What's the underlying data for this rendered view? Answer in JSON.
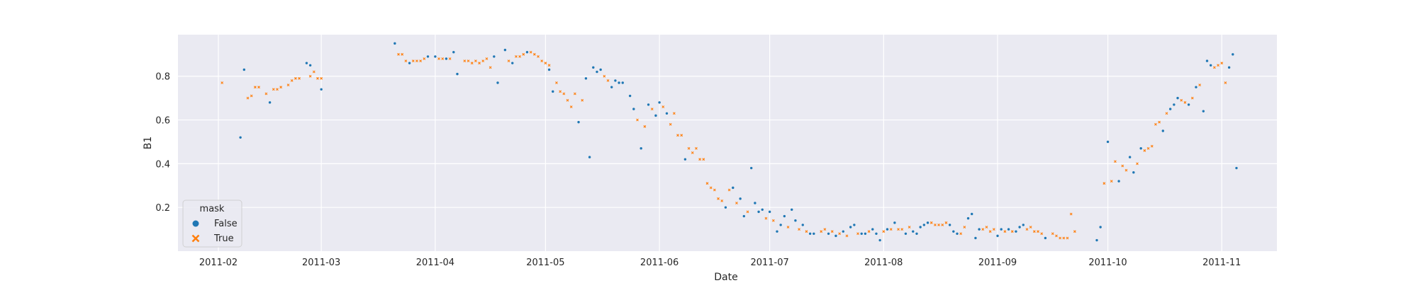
{
  "chart_data": {
    "type": "scatter",
    "title": "",
    "xlabel": "Date",
    "ylabel": "B1",
    "x_axis": "date",
    "xlim": [
      "2011-01-21",
      "2011-11-16"
    ],
    "ylim": [
      0.0,
      0.99
    ],
    "xticks": [
      "2011-02-01",
      "2011-03-01",
      "2011-04-01",
      "2011-05-01",
      "2011-06-01",
      "2011-07-01",
      "2011-08-01",
      "2011-09-01",
      "2011-10-01",
      "2011-11-01"
    ],
    "xtick_labels": [
      "2011-02",
      "2011-03",
      "2011-04",
      "2011-05",
      "2011-06",
      "2011-07",
      "2011-08",
      "2011-09",
      "2011-10",
      "2011-11"
    ],
    "yticks": [
      0.2,
      0.4,
      0.6,
      0.8
    ],
    "ytick_labels": [
      "0.2",
      "0.4",
      "0.6",
      "0.8"
    ],
    "grid": true,
    "style": "seaborn-darkgrid",
    "legend": {
      "title": "mask",
      "placement": "lower-left",
      "entries": [
        {
          "label": "False",
          "marker": "circle",
          "color": "#1f77b4"
        },
        {
          "label": "True",
          "marker": "x",
          "color": "#ff7f0e"
        }
      ]
    },
    "series": [
      {
        "name": "False",
        "color": "#1f77b4",
        "marker": "circle",
        "points": [
          [
            "2011-02-07",
            0.52
          ],
          [
            "2011-02-08",
            0.83
          ],
          [
            "2011-02-15",
            0.68
          ],
          [
            "2011-02-25",
            0.86
          ],
          [
            "2011-02-26",
            0.85
          ],
          [
            "2011-03-01",
            0.74
          ],
          [
            "2011-03-21",
            0.95
          ],
          [
            "2011-03-25",
            0.86
          ],
          [
            "2011-03-30",
            0.89
          ],
          [
            "2011-04-01",
            0.89
          ],
          [
            "2011-04-04",
            0.88
          ],
          [
            "2011-04-06",
            0.91
          ],
          [
            "2011-04-07",
            0.81
          ],
          [
            "2011-04-17",
            0.89
          ],
          [
            "2011-04-18",
            0.77
          ],
          [
            "2011-04-20",
            0.92
          ],
          [
            "2011-04-22",
            0.86
          ],
          [
            "2011-04-26",
            0.91
          ],
          [
            "2011-05-02",
            0.83
          ],
          [
            "2011-05-03",
            0.73
          ],
          [
            "2011-05-10",
            0.59
          ],
          [
            "2011-05-12",
            0.79
          ],
          [
            "2011-05-13",
            0.43
          ],
          [
            "2011-05-14",
            0.84
          ],
          [
            "2011-05-15",
            0.82
          ],
          [
            "2011-05-16",
            0.83
          ],
          [
            "2011-05-19",
            0.75
          ],
          [
            "2011-05-20",
            0.78
          ],
          [
            "2011-05-21",
            0.77
          ],
          [
            "2011-05-22",
            0.77
          ],
          [
            "2011-05-24",
            0.71
          ],
          [
            "2011-05-25",
            0.65
          ],
          [
            "2011-05-27",
            0.47
          ],
          [
            "2011-05-29",
            0.67
          ],
          [
            "2011-05-31",
            0.62
          ],
          [
            "2011-06-01",
            0.68
          ],
          [
            "2011-06-03",
            0.63
          ],
          [
            "2011-06-08",
            0.42
          ],
          [
            "2011-06-19",
            0.2
          ],
          [
            "2011-06-21",
            0.29
          ],
          [
            "2011-06-23",
            0.24
          ],
          [
            "2011-06-24",
            0.16
          ],
          [
            "2011-06-26",
            0.38
          ],
          [
            "2011-06-27",
            0.22
          ],
          [
            "2011-06-28",
            0.18
          ],
          [
            "2011-06-29",
            0.19
          ],
          [
            "2011-07-01",
            0.18
          ],
          [
            "2011-07-03",
            0.09
          ],
          [
            "2011-07-04",
            0.12
          ],
          [
            "2011-07-05",
            0.16
          ],
          [
            "2011-07-07",
            0.19
          ],
          [
            "2011-07-08",
            0.14
          ],
          [
            "2011-07-10",
            0.12
          ],
          [
            "2011-07-12",
            0.08
          ],
          [
            "2011-07-13",
            0.08
          ],
          [
            "2011-07-17",
            0.08
          ],
          [
            "2011-07-19",
            0.07
          ],
          [
            "2011-07-21",
            0.09
          ],
          [
            "2011-07-23",
            0.11
          ],
          [
            "2011-07-24",
            0.12
          ],
          [
            "2011-07-26",
            0.08
          ],
          [
            "2011-07-27",
            0.08
          ],
          [
            "2011-07-29",
            0.1
          ],
          [
            "2011-07-30",
            0.08
          ],
          [
            "2011-07-31",
            0.05
          ],
          [
            "2011-08-02",
            0.1
          ],
          [
            "2011-08-04",
            0.13
          ],
          [
            "2011-08-07",
            0.08
          ],
          [
            "2011-08-09",
            0.09
          ],
          [
            "2011-08-10",
            0.08
          ],
          [
            "2011-08-11",
            0.11
          ],
          [
            "2011-08-12",
            0.12
          ],
          [
            "2011-08-13",
            0.13
          ],
          [
            "2011-08-19",
            0.12
          ],
          [
            "2011-08-20",
            0.09
          ],
          [
            "2011-08-21",
            0.08
          ],
          [
            "2011-08-24",
            0.15
          ],
          [
            "2011-08-25",
            0.17
          ],
          [
            "2011-08-26",
            0.06
          ],
          [
            "2011-08-27",
            0.1
          ],
          [
            "2011-09-01",
            0.07
          ],
          [
            "2011-09-02",
            0.1
          ],
          [
            "2011-09-04",
            0.1
          ],
          [
            "2011-09-06",
            0.09
          ],
          [
            "2011-09-07",
            0.11
          ],
          [
            "2011-09-08",
            0.12
          ],
          [
            "2011-09-14",
            0.06
          ],
          [
            "2011-09-28",
            0.05
          ],
          [
            "2011-09-29",
            0.11
          ],
          [
            "2011-10-01",
            0.5
          ],
          [
            "2011-10-04",
            0.32
          ],
          [
            "2011-10-07",
            0.43
          ],
          [
            "2011-10-08",
            0.36
          ],
          [
            "2011-10-10",
            0.47
          ],
          [
            "2011-10-16",
            0.55
          ],
          [
            "2011-10-18",
            0.65
          ],
          [
            "2011-10-19",
            0.67
          ],
          [
            "2011-10-20",
            0.7
          ],
          [
            "2011-10-23",
            0.67
          ],
          [
            "2011-10-25",
            0.75
          ],
          [
            "2011-10-27",
            0.64
          ],
          [
            "2011-10-28",
            0.87
          ],
          [
            "2011-10-29",
            0.85
          ],
          [
            "2011-11-03",
            0.84
          ],
          [
            "2011-11-04",
            0.9
          ],
          [
            "2011-11-05",
            0.38
          ]
        ]
      },
      {
        "name": "True",
        "color": "#ff7f0e",
        "marker": "x",
        "points": [
          [
            "2011-02-02",
            0.77
          ],
          [
            "2011-02-09",
            0.7
          ],
          [
            "2011-02-10",
            0.71
          ],
          [
            "2011-02-11",
            0.75
          ],
          [
            "2011-02-12",
            0.75
          ],
          [
            "2011-02-14",
            0.72
          ],
          [
            "2011-02-16",
            0.74
          ],
          [
            "2011-02-17",
            0.74
          ],
          [
            "2011-02-18",
            0.75
          ],
          [
            "2011-02-20",
            0.76
          ],
          [
            "2011-02-21",
            0.78
          ],
          [
            "2011-02-22",
            0.79
          ],
          [
            "2011-02-23",
            0.79
          ],
          [
            "2011-02-26",
            0.8
          ],
          [
            "2011-02-27",
            0.82
          ],
          [
            "2011-02-28",
            0.79
          ],
          [
            "2011-03-01",
            0.79
          ],
          [
            "2011-03-22",
            0.9
          ],
          [
            "2011-03-23",
            0.9
          ],
          [
            "2011-03-24",
            0.87
          ],
          [
            "2011-03-26",
            0.87
          ],
          [
            "2011-03-27",
            0.87
          ],
          [
            "2011-03-28",
            0.87
          ],
          [
            "2011-03-29",
            0.88
          ],
          [
            "2011-04-02",
            0.88
          ],
          [
            "2011-04-03",
            0.88
          ],
          [
            "2011-04-05",
            0.88
          ],
          [
            "2011-04-09",
            0.87
          ],
          [
            "2011-04-10",
            0.87
          ],
          [
            "2011-04-11",
            0.86
          ],
          [
            "2011-04-12",
            0.87
          ],
          [
            "2011-04-13",
            0.86
          ],
          [
            "2011-04-14",
            0.87
          ],
          [
            "2011-04-15",
            0.88
          ],
          [
            "2011-04-16",
            0.84
          ],
          [
            "2011-04-21",
            0.87
          ],
          [
            "2011-04-23",
            0.89
          ],
          [
            "2011-04-24",
            0.89
          ],
          [
            "2011-04-25",
            0.9
          ],
          [
            "2011-04-27",
            0.91
          ],
          [
            "2011-04-28",
            0.9
          ],
          [
            "2011-04-29",
            0.89
          ],
          [
            "2011-04-30",
            0.87
          ],
          [
            "2011-05-01",
            0.86
          ],
          [
            "2011-05-02",
            0.85
          ],
          [
            "2011-05-04",
            0.77
          ],
          [
            "2011-05-05",
            0.73
          ],
          [
            "2011-05-06",
            0.72
          ],
          [
            "2011-05-07",
            0.69
          ],
          [
            "2011-05-08",
            0.66
          ],
          [
            "2011-05-09",
            0.72
          ],
          [
            "2011-05-11",
            0.69
          ],
          [
            "2011-05-17",
            0.8
          ],
          [
            "2011-05-18",
            0.78
          ],
          [
            "2011-05-26",
            0.6
          ],
          [
            "2011-05-28",
            0.57
          ],
          [
            "2011-05-30",
            0.65
          ],
          [
            "2011-06-02",
            0.66
          ],
          [
            "2011-06-04",
            0.58
          ],
          [
            "2011-06-05",
            0.63
          ],
          [
            "2011-06-06",
            0.53
          ],
          [
            "2011-06-07",
            0.53
          ],
          [
            "2011-06-09",
            0.47
          ],
          [
            "2011-06-10",
            0.45
          ],
          [
            "2011-06-11",
            0.47
          ],
          [
            "2011-06-12",
            0.42
          ],
          [
            "2011-06-13",
            0.42
          ],
          [
            "2011-06-14",
            0.31
          ],
          [
            "2011-06-15",
            0.29
          ],
          [
            "2011-06-16",
            0.28
          ],
          [
            "2011-06-17",
            0.24
          ],
          [
            "2011-06-18",
            0.23
          ],
          [
            "2011-06-20",
            0.28
          ],
          [
            "2011-06-22",
            0.22
          ],
          [
            "2011-06-25",
            0.18
          ],
          [
            "2011-06-30",
            0.15
          ],
          [
            "2011-07-02",
            0.14
          ],
          [
            "2011-07-06",
            0.11
          ],
          [
            "2011-07-09",
            0.1
          ],
          [
            "2011-07-11",
            0.09
          ],
          [
            "2011-07-15",
            0.09
          ],
          [
            "2011-07-16",
            0.1
          ],
          [
            "2011-07-18",
            0.09
          ],
          [
            "2011-07-20",
            0.08
          ],
          [
            "2011-07-22",
            0.07
          ],
          [
            "2011-07-25",
            0.08
          ],
          [
            "2011-07-28",
            0.09
          ],
          [
            "2011-08-01",
            0.09
          ],
          [
            "2011-08-03",
            0.1
          ],
          [
            "2011-08-05",
            0.1
          ],
          [
            "2011-08-06",
            0.1
          ],
          [
            "2011-08-08",
            0.11
          ],
          [
            "2011-08-14",
            0.13
          ],
          [
            "2011-08-15",
            0.12
          ],
          [
            "2011-08-16",
            0.12
          ],
          [
            "2011-08-17",
            0.12
          ],
          [
            "2011-08-18",
            0.13
          ],
          [
            "2011-08-22",
            0.08
          ],
          [
            "2011-08-23",
            0.11
          ],
          [
            "2011-08-28",
            0.1
          ],
          [
            "2011-08-29",
            0.11
          ],
          [
            "2011-08-30",
            0.09
          ],
          [
            "2011-08-31",
            0.1
          ],
          [
            "2011-09-03",
            0.09
          ],
          [
            "2011-09-05",
            0.09
          ],
          [
            "2011-09-09",
            0.1
          ],
          [
            "2011-09-10",
            0.11
          ],
          [
            "2011-09-11",
            0.09
          ],
          [
            "2011-09-12",
            0.09
          ],
          [
            "2011-09-13",
            0.08
          ],
          [
            "2011-09-16",
            0.08
          ],
          [
            "2011-09-17",
            0.07
          ],
          [
            "2011-09-18",
            0.06
          ],
          [
            "2011-09-19",
            0.06
          ],
          [
            "2011-09-20",
            0.06
          ],
          [
            "2011-09-21",
            0.17
          ],
          [
            "2011-09-22",
            0.09
          ],
          [
            "2011-09-30",
            0.31
          ],
          [
            "2011-10-02",
            0.32
          ],
          [
            "2011-10-03",
            0.41
          ],
          [
            "2011-10-05",
            0.39
          ],
          [
            "2011-10-06",
            0.37
          ],
          [
            "2011-10-09",
            0.4
          ],
          [
            "2011-10-11",
            0.46
          ],
          [
            "2011-10-12",
            0.47
          ],
          [
            "2011-10-13",
            0.48
          ],
          [
            "2011-10-14",
            0.58
          ],
          [
            "2011-10-15",
            0.59
          ],
          [
            "2011-10-17",
            0.63
          ],
          [
            "2011-10-21",
            0.69
          ],
          [
            "2011-10-22",
            0.68
          ],
          [
            "2011-10-24",
            0.7
          ],
          [
            "2011-10-26",
            0.76
          ],
          [
            "2011-10-30",
            0.84
          ],
          [
            "2011-10-31",
            0.85
          ],
          [
            "2011-11-01",
            0.86
          ],
          [
            "2011-11-02",
            0.77
          ]
        ]
      }
    ]
  }
}
